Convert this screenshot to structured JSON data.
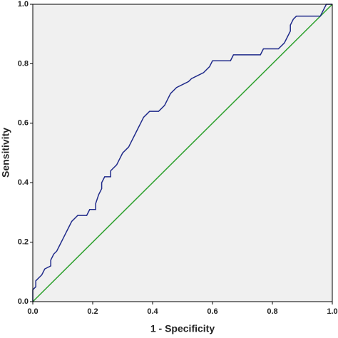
{
  "chart_data": {
    "type": "line",
    "x_label": "1 - Specificity",
    "y_label": "Sensitivity",
    "xlim": [
      0,
      1
    ],
    "ylim": [
      0,
      1
    ],
    "xticks": [
      {
        "value": 0,
        "label": "0.0"
      },
      0.2,
      0.4,
      0.6,
      0.8,
      {
        "value": 1,
        "label": "1.0"
      }
    ],
    "yticks": [
      {
        "value": 0,
        "label": "0.0"
      },
      0.2,
      0.4,
      0.6,
      0.8,
      {
        "value": 1,
        "label": "1.0"
      }
    ],
    "background": "#f0f0f0",
    "series": [
      {
        "color": "#1f2a8a",
        "x": [
          0,
          0,
          0.01,
          0.01,
          0.02,
          0.03,
          0.04,
          0.06,
          0.06,
          0.07,
          0.08,
          0.09,
          0.1,
          0.11,
          0.12,
          0.13,
          0.15,
          0.18,
          0.19,
          0.21,
          0.21,
          0.22,
          0.23,
          0.23,
          0.24,
          0.26,
          0.26,
          0.28,
          0.29,
          0.3,
          0.32,
          0.33,
          0.34,
          0.35,
          0.36,
          0.37,
          0.38,
          0.39,
          0.42,
          0.44,
          0.45,
          0.46,
          0.48,
          0.5,
          0.52,
          0.53,
          0.55,
          0.57,
          0.59,
          0.6,
          0.66,
          0.67,
          0.76,
          0.77,
          0.82,
          0.84,
          0.85,
          0.86,
          0.86,
          0.87,
          0.88,
          0.96,
          0.97,
          0.98,
          1.0
        ],
        "values": [
          0,
          0.04,
          0.05,
          0.07,
          0.08,
          0.09,
          0.11,
          0.12,
          0.14,
          0.16,
          0.17,
          0.19,
          0.21,
          0.23,
          0.25,
          0.27,
          0.29,
          0.29,
          0.31,
          0.31,
          0.33,
          0.36,
          0.38,
          0.4,
          0.42,
          0.42,
          0.44,
          0.46,
          0.48,
          0.5,
          0.52,
          0.54,
          0.56,
          0.58,
          0.6,
          0.62,
          0.63,
          0.64,
          0.64,
          0.66,
          0.68,
          0.7,
          0.72,
          0.73,
          0.74,
          0.75,
          0.76,
          0.77,
          0.79,
          0.81,
          0.81,
          0.83,
          0.83,
          0.85,
          0.85,
          0.87,
          0.89,
          0.91,
          0.93,
          0.95,
          0.96,
          0.96,
          0.98,
          1.0,
          1.0
        ]
      },
      {
        "color": "#2ca02c",
        "x": [
          0,
          1
        ],
        "values": [
          0,
          1
        ]
      }
    ]
  }
}
